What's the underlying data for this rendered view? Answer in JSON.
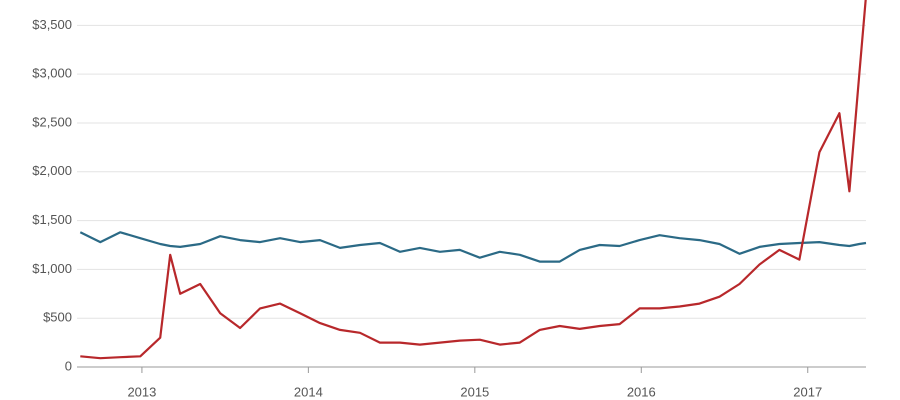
{
  "chart_data": {
    "type": "line",
    "x": [
      2012.63,
      2012.75,
      2012.87,
      2012.99,
      2013.11,
      2013.17,
      2013.23,
      2013.35,
      2013.47,
      2013.59,
      2013.71,
      2013.83,
      2013.95,
      2014.07,
      2014.19,
      2014.31,
      2014.43,
      2014.55,
      2014.67,
      2014.79,
      2014.91,
      2015.03,
      2015.15,
      2015.27,
      2015.39,
      2015.51,
      2015.63,
      2015.75,
      2015.87,
      2015.99,
      2016.11,
      2016.23,
      2016.35,
      2016.47,
      2016.59,
      2016.71,
      2016.83,
      2016.95,
      2017.07,
      2017.19,
      2017.25,
      2017.31,
      2017.35
    ],
    "series": [
      {
        "color": "#2b6a86",
        "values": [
          1380,
          1280,
          1380,
          1320,
          1260,
          1240,
          1230,
          1260,
          1340,
          1300,
          1280,
          1320,
          1280,
          1300,
          1220,
          1250,
          1270,
          1180,
          1220,
          1180,
          1200,
          1120,
          1180,
          1150,
          1080,
          1080,
          1200,
          1250,
          1240,
          1300,
          1350,
          1320,
          1300,
          1260,
          1160,
          1230,
          1260,
          1270,
          1280,
          1250,
          1240,
          1260,
          1270
        ]
      },
      {
        "color": "#b8282b",
        "values": [
          110,
          90,
          100,
          110,
          300,
          1150,
          750,
          850,
          550,
          400,
          600,
          650,
          550,
          450,
          380,
          350,
          250,
          250,
          230,
          250,
          270,
          280,
          230,
          250,
          380,
          420,
          390,
          420,
          440,
          600,
          600,
          620,
          650,
          720,
          850,
          1050,
          1200,
          1100,
          2200,
          2600,
          1800,
          3000,
          3800
        ]
      }
    ],
    "xlim": [
      2012.61,
      2017.35
    ],
    "xticks": [
      2013,
      2014,
      2015,
      2016,
      2017
    ],
    "ylim": [
      0,
      3760
    ],
    "yticks": [
      0,
      {
        "value": 500,
        "label": "$500"
      },
      {
        "value": 1000,
        "label": "$1,000"
      },
      {
        "value": 1500,
        "label": "$1,500"
      },
      {
        "value": 2000,
        "label": "$2,000"
      },
      {
        "value": 2500,
        "label": "$2,500"
      },
      {
        "value": 3000,
        "label": "$3,000"
      },
      {
        "value": 3500,
        "label": "$3,500"
      }
    ],
    "grid": true
  }
}
